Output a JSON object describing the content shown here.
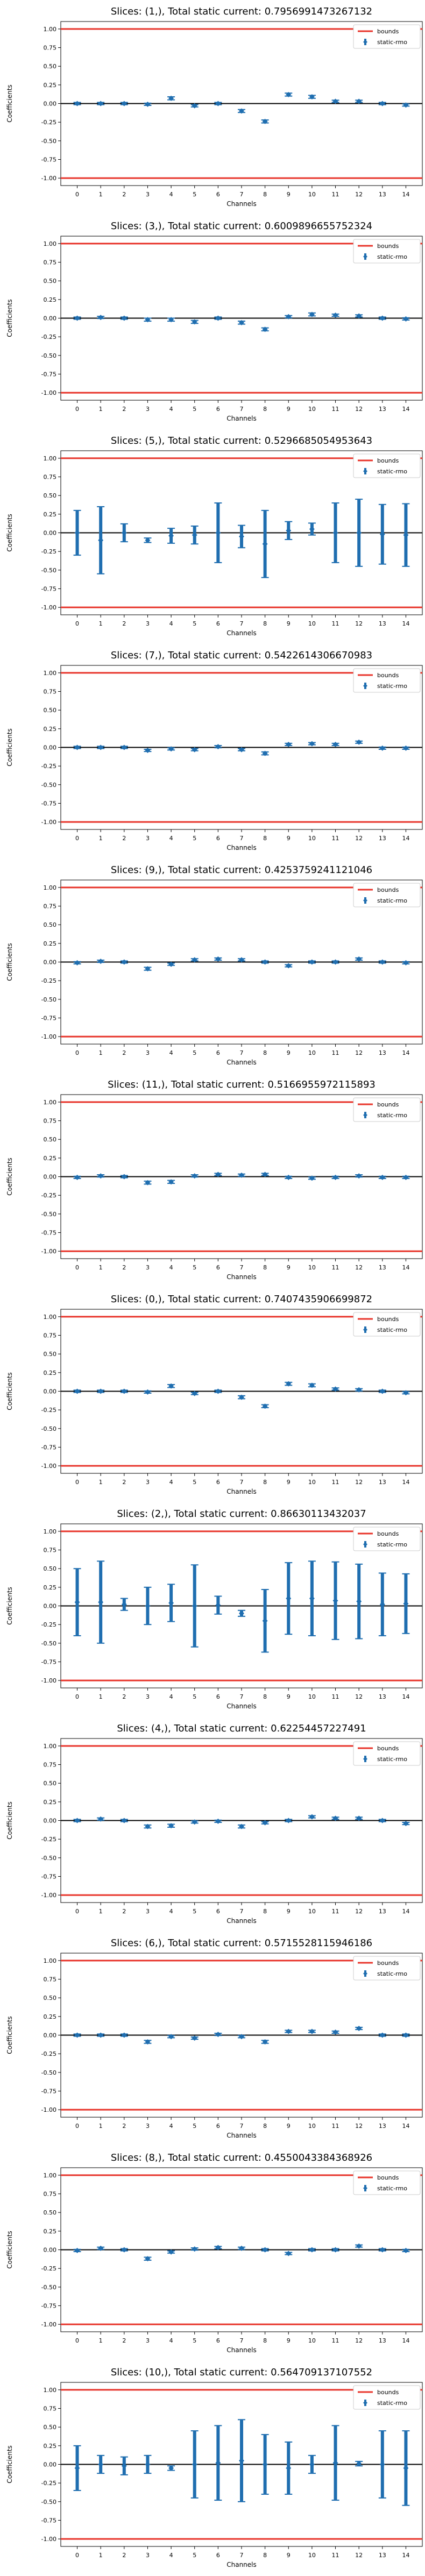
{
  "style": {
    "bounds_color": "#e8352b",
    "series_color": "#1f6eb0",
    "zero_line_color": "#000000",
    "frame_color": "#000000"
  },
  "chart_data": [
    {
      "type": "errorbar",
      "title": "Slices: (1,), Total static current: 0.7956991473267132",
      "xlabel": "Channels",
      "ylabel": "Coefficients",
      "categories": [
        "0",
        "1",
        "2",
        "3",
        "4",
        "5",
        "6",
        "7",
        "8",
        "9",
        "10",
        "11",
        "12",
        "13",
        "14"
      ],
      "ylim": [
        -1.1,
        1.1
      ],
      "yticks": [
        "1.00",
        "0.75",
        "0.50",
        "0.25",
        "0.00",
        "-0.25",
        "-0.50",
        "-0.75",
        "-1.00"
      ],
      "bounds": [
        -1,
        1
      ],
      "legend": {
        "position": "top-right",
        "entries": [
          "bounds",
          "static-rmo"
        ]
      },
      "series": [
        {
          "name": "static-rmo",
          "values": [
            0.0,
            0.0,
            0.0,
            -0.01,
            0.07,
            -0.03,
            0.0,
            -0.1,
            -0.24,
            0.12,
            0.09,
            0.03,
            0.03,
            0.0,
            -0.02
          ],
          "errors": [
            0.015,
            0.015,
            0.015,
            0.015,
            0.02,
            0.015,
            0.015,
            0.02,
            0.02,
            0.02,
            0.02,
            0.015,
            0.015,
            0.015,
            0.015
          ]
        }
      ]
    },
    {
      "type": "errorbar",
      "title": "Slices: (3,), Total static current: 0.6009896655752324",
      "xlabel": "Channels",
      "ylabel": "Coefficients",
      "categories": [
        "0",
        "1",
        "2",
        "3",
        "4",
        "5",
        "6",
        "7",
        "8",
        "9",
        "10",
        "11",
        "12",
        "13",
        "14"
      ],
      "ylim": [
        -1.1,
        1.1
      ],
      "yticks": [
        "1.00",
        "0.75",
        "0.50",
        "0.25",
        "0.00",
        "-0.25",
        "-0.50",
        "-0.75",
        "-1.00"
      ],
      "bounds": [
        -1,
        1
      ],
      "legend": {
        "position": "top-right",
        "entries": [
          "bounds",
          "static-rmo"
        ]
      },
      "series": [
        {
          "name": "static-rmo",
          "values": [
            0.0,
            0.01,
            0.0,
            -0.02,
            -0.02,
            -0.05,
            0.0,
            -0.06,
            -0.15,
            0.02,
            0.05,
            0.04,
            0.03,
            0.0,
            -0.01
          ],
          "errors": [
            0.015,
            0.015,
            0.015,
            0.02,
            0.02,
            0.02,
            0.015,
            0.02,
            0.02,
            0.015,
            0.02,
            0.015,
            0.015,
            0.015,
            0.015
          ]
        }
      ]
    },
    {
      "type": "errorbar",
      "title": "Slices: (5,), Total static current: 0.5296685054953643",
      "xlabel": "Channels",
      "ylabel": "Coefficients",
      "categories": [
        "0",
        "1",
        "2",
        "3",
        "4",
        "5",
        "6",
        "7",
        "8",
        "9",
        "10",
        "11",
        "12",
        "13",
        "14"
      ],
      "ylim": [
        -1.1,
        1.1
      ],
      "yticks": [
        "1.00",
        "0.75",
        "0.50",
        "0.25",
        "0.00",
        "-0.25",
        "-0.50",
        "-0.75",
        "-1.00"
      ],
      "bounds": [
        -1,
        1
      ],
      "legend": {
        "position": "top-right",
        "entries": [
          "bounds",
          "static-rmo"
        ]
      },
      "series": [
        {
          "name": "static-rmo",
          "values": [
            0.0,
            -0.1,
            0.0,
            -0.1,
            -0.04,
            -0.03,
            0.0,
            -0.05,
            -0.15,
            0.03,
            0.05,
            0.0,
            0.0,
            -0.02,
            -0.03
          ],
          "errors": [
            0.3,
            0.45,
            0.12,
            0.03,
            0.1,
            0.12,
            0.4,
            0.15,
            0.45,
            0.12,
            0.08,
            0.4,
            0.45,
            0.4,
            0.42
          ]
        }
      ]
    },
    {
      "type": "errorbar",
      "title": "Slices: (7,), Total static current: 0.5422614306670983",
      "xlabel": "Channels",
      "ylabel": "Coefficients",
      "categories": [
        "0",
        "1",
        "2",
        "3",
        "4",
        "5",
        "6",
        "7",
        "8",
        "9",
        "10",
        "11",
        "12",
        "13",
        "14"
      ],
      "ylim": [
        -1.1,
        1.1
      ],
      "yticks": [
        "1.00",
        "0.75",
        "0.50",
        "0.25",
        "0.00",
        "-0.25",
        "-0.50",
        "-0.75",
        "-1.00"
      ],
      "bounds": [
        -1,
        1
      ],
      "legend": {
        "position": "top-right",
        "entries": [
          "bounds",
          "static-rmo"
        ]
      },
      "series": [
        {
          "name": "static-rmo",
          "values": [
            0.0,
            0.0,
            0.0,
            -0.04,
            -0.02,
            -0.03,
            0.01,
            -0.03,
            -0.08,
            0.04,
            0.05,
            0.04,
            0.07,
            -0.01,
            -0.01
          ],
          "errors": [
            0.015,
            0.015,
            0.015,
            0.015,
            0.015,
            0.015,
            0.015,
            0.015,
            0.02,
            0.015,
            0.015,
            0.015,
            0.015,
            0.015,
            0.015
          ]
        }
      ]
    },
    {
      "type": "errorbar",
      "title": "Slices: (9,), Total static current: 0.4253759241121046",
      "xlabel": "Channels",
      "ylabel": "Coefficients",
      "categories": [
        "0",
        "1",
        "2",
        "3",
        "4",
        "5",
        "6",
        "7",
        "8",
        "9",
        "10",
        "11",
        "12",
        "13",
        "14"
      ],
      "ylim": [
        -1.1,
        1.1
      ],
      "yticks": [
        "1.00",
        "0.75",
        "0.50",
        "0.25",
        "0.00",
        "-0.25",
        "-0.50",
        "-0.75",
        "-1.00"
      ],
      "bounds": [
        -1,
        1
      ],
      "legend": {
        "position": "top-right",
        "entries": [
          "bounds",
          "static-rmo"
        ]
      },
      "series": [
        {
          "name": "static-rmo",
          "values": [
            -0.01,
            0.01,
            0.0,
            -0.09,
            -0.03,
            0.03,
            0.04,
            0.03,
            0.0,
            -0.05,
            0.0,
            0.0,
            0.04,
            0.0,
            -0.01
          ],
          "errors": [
            0.015,
            0.015,
            0.015,
            0.02,
            0.015,
            0.015,
            0.015,
            0.015,
            0.015,
            0.015,
            0.015,
            0.015,
            0.015,
            0.015,
            0.015
          ]
        }
      ]
    },
    {
      "type": "errorbar",
      "title": "Slices: (11,), Total static current: 0.5166955972115893",
      "xlabel": "Channels",
      "ylabel": "Coefficients",
      "categories": [
        "0",
        "1",
        "2",
        "3",
        "4",
        "5",
        "6",
        "7",
        "8",
        "9",
        "10",
        "11",
        "12",
        "13",
        "14"
      ],
      "ylim": [
        -1.1,
        1.1
      ],
      "yticks": [
        "1.00",
        "0.75",
        "0.50",
        "0.25",
        "0.00",
        "-0.25",
        "-0.50",
        "-0.75",
        "-1.00"
      ],
      "bounds": [
        -1,
        1
      ],
      "legend": {
        "position": "top-right",
        "entries": [
          "bounds",
          "static-rmo"
        ]
      },
      "series": [
        {
          "name": "static-rmo",
          "values": [
            -0.01,
            0.01,
            0.0,
            -0.08,
            -0.07,
            0.01,
            0.03,
            0.02,
            0.03,
            -0.01,
            -0.02,
            -0.01,
            0.01,
            -0.01,
            -0.01
          ],
          "errors": [
            0.015,
            0.015,
            0.015,
            0.02,
            0.02,
            0.015,
            0.015,
            0.015,
            0.015,
            0.015,
            0.015,
            0.015,
            0.015,
            0.015,
            0.015
          ]
        }
      ]
    },
    {
      "type": "errorbar",
      "title": "Slices: (0,), Total static current: 0.7407435906699872",
      "xlabel": "Channels",
      "ylabel": "Coefficients",
      "categories": [
        "0",
        "1",
        "2",
        "3",
        "4",
        "5",
        "6",
        "7",
        "8",
        "9",
        "10",
        "11",
        "12",
        "13",
        "14"
      ],
      "ylim": [
        -1.1,
        1.1
      ],
      "yticks": [
        "1.00",
        "0.75",
        "0.50",
        "0.25",
        "0.00",
        "-0.25",
        "-0.50",
        "-0.75",
        "-1.00"
      ],
      "bounds": [
        -1,
        1
      ],
      "legend": {
        "position": "top-right",
        "entries": [
          "bounds",
          "static-rmo"
        ]
      },
      "series": [
        {
          "name": "static-rmo",
          "values": [
            0.0,
            0.0,
            0.0,
            -0.01,
            0.07,
            -0.03,
            0.0,
            -0.08,
            -0.2,
            0.1,
            0.08,
            0.03,
            0.02,
            0.0,
            -0.02
          ],
          "errors": [
            0.015,
            0.015,
            0.015,
            0.015,
            0.02,
            0.015,
            0.015,
            0.02,
            0.02,
            0.02,
            0.02,
            0.015,
            0.015,
            0.015,
            0.015
          ]
        }
      ]
    },
    {
      "type": "errorbar",
      "title": "Slices: (2,), Total static current: 0.86630113432037",
      "xlabel": "Channels",
      "ylabel": "Coefficients",
      "categories": [
        "0",
        "1",
        "2",
        "3",
        "4",
        "5",
        "6",
        "7",
        "8",
        "9",
        "10",
        "11",
        "12",
        "13",
        "14"
      ],
      "ylim": [
        -1.1,
        1.1
      ],
      "yticks": [
        "1.00",
        "0.75",
        "0.50",
        "0.25",
        "0.00",
        "-0.25",
        "-0.50",
        "-0.75",
        "-1.00"
      ],
      "bounds": [
        -1,
        1
      ],
      "legend": {
        "position": "top-right",
        "entries": [
          "bounds",
          "static-rmo"
        ]
      },
      "series": [
        {
          "name": "static-rmo",
          "values": [
            0.05,
            0.05,
            0.02,
            0.0,
            0.04,
            0.0,
            0.01,
            -0.1,
            -0.2,
            0.1,
            0.1,
            0.07,
            0.06,
            0.02,
            0.03
          ],
          "errors": [
            0.45,
            0.55,
            0.08,
            0.25,
            0.25,
            0.55,
            0.12,
            0.04,
            0.42,
            0.48,
            0.5,
            0.52,
            0.5,
            0.42,
            0.4
          ]
        }
      ]
    },
    {
      "type": "errorbar",
      "title": "Slices: (4,), Total static current: 0.62254457227491",
      "xlabel": "Channels",
      "ylabel": "Coefficients",
      "categories": [
        "0",
        "1",
        "2",
        "3",
        "4",
        "5",
        "6",
        "7",
        "8",
        "9",
        "10",
        "11",
        "12",
        "13",
        "14"
      ],
      "ylim": [
        -1.1,
        1.1
      ],
      "yticks": [
        "1.00",
        "0.75",
        "0.50",
        "0.25",
        "0.00",
        "-0.25",
        "-0.50",
        "-0.75",
        "-1.00"
      ],
      "bounds": [
        -1,
        1
      ],
      "legend": {
        "position": "top-right",
        "entries": [
          "bounds",
          "static-rmo"
        ]
      },
      "series": [
        {
          "name": "static-rmo",
          "values": [
            0.0,
            0.02,
            0.0,
            -0.08,
            -0.07,
            -0.02,
            -0.01,
            -0.08,
            -0.03,
            0.0,
            0.05,
            0.03,
            0.03,
            0.0,
            -0.04
          ],
          "errors": [
            0.015,
            0.015,
            0.015,
            0.02,
            0.02,
            0.015,
            0.015,
            0.02,
            0.015,
            0.015,
            0.015,
            0.015,
            0.015,
            0.015,
            0.015
          ]
        }
      ]
    },
    {
      "type": "errorbar",
      "title": "Slices: (6,), Total static current: 0.5715528115946186",
      "xlabel": "Channels",
      "ylabel": "Coefficients",
      "categories": [
        "0",
        "1",
        "2",
        "3",
        "4",
        "5",
        "6",
        "7",
        "8",
        "9",
        "10",
        "11",
        "12",
        "13",
        "14"
      ],
      "ylim": [
        -1.1,
        1.1
      ],
      "yticks": [
        "1.00",
        "0.75",
        "0.50",
        "0.25",
        "0.00",
        "-0.25",
        "-0.50",
        "-0.75",
        "-1.00"
      ],
      "bounds": [
        -1,
        1
      ],
      "legend": {
        "position": "top-right",
        "entries": [
          "bounds",
          "static-rmo"
        ]
      },
      "series": [
        {
          "name": "static-rmo",
          "values": [
            0.0,
            0.0,
            0.0,
            -0.09,
            -0.02,
            -0.04,
            0.01,
            -0.02,
            -0.09,
            0.05,
            0.05,
            0.04,
            0.09,
            0.0,
            0.0
          ],
          "errors": [
            0.015,
            0.015,
            0.015,
            0.02,
            0.015,
            0.015,
            0.015,
            0.015,
            0.02,
            0.015,
            0.015,
            0.015,
            0.015,
            0.015,
            0.015
          ]
        }
      ]
    },
    {
      "type": "errorbar",
      "title": "Slices: (8,), Total static current: 0.4550043384368926",
      "xlabel": "Channels",
      "ylabel": "Coefficients",
      "categories": [
        "0",
        "1",
        "2",
        "3",
        "4",
        "5",
        "6",
        "7",
        "8",
        "9",
        "10",
        "11",
        "12",
        "13",
        "14"
      ],
      "ylim": [
        -1.1,
        1.1
      ],
      "yticks": [
        "1.00",
        "0.75",
        "0.50",
        "0.25",
        "0.00",
        "-0.25",
        "-0.50",
        "-0.75",
        "-1.00"
      ],
      "bounds": [
        -1,
        1
      ],
      "legend": {
        "position": "top-right",
        "entries": [
          "bounds",
          "static-rmo"
        ]
      },
      "series": [
        {
          "name": "static-rmo",
          "values": [
            -0.01,
            0.02,
            0.0,
            -0.12,
            -0.03,
            0.01,
            0.03,
            0.02,
            0.0,
            -0.05,
            0.0,
            0.0,
            0.05,
            0.0,
            -0.01
          ],
          "errors": [
            0.015,
            0.015,
            0.015,
            0.02,
            0.015,
            0.015,
            0.015,
            0.015,
            0.015,
            0.015,
            0.015,
            0.015,
            0.015,
            0.015,
            0.015
          ]
        }
      ]
    },
    {
      "type": "errorbar",
      "title": "Slices: (10,), Total static current: 0.564709137107552",
      "xlabel": "Channels",
      "ylabel": "Coefficients",
      "categories": [
        "0",
        "1",
        "2",
        "3",
        "4",
        "5",
        "6",
        "7",
        "8",
        "9",
        "10",
        "11",
        "12",
        "13",
        "14"
      ],
      "ylim": [
        -1.1,
        1.1
      ],
      "yticks": [
        "1.00",
        "0.75",
        "0.50",
        "0.25",
        "0.00",
        "-0.25",
        "-0.50",
        "-0.75",
        "-1.00"
      ],
      "bounds": [
        -1,
        1
      ],
      "legend": {
        "position": "top-right",
        "entries": [
          "bounds",
          "static-rmo"
        ]
      },
      "series": [
        {
          "name": "static-rmo",
          "values": [
            -0.05,
            0.0,
            -0.02,
            0.0,
            -0.05,
            0.0,
            0.02,
            0.05,
            0.0,
            -0.05,
            0.0,
            0.02,
            0.01,
            0.0,
            -0.05
          ],
          "errors": [
            0.3,
            0.12,
            0.12,
            0.12,
            0.03,
            0.45,
            0.5,
            0.55,
            0.4,
            0.35,
            0.12,
            0.5,
            0.03,
            0.45,
            0.5
          ]
        }
      ]
    }
  ]
}
